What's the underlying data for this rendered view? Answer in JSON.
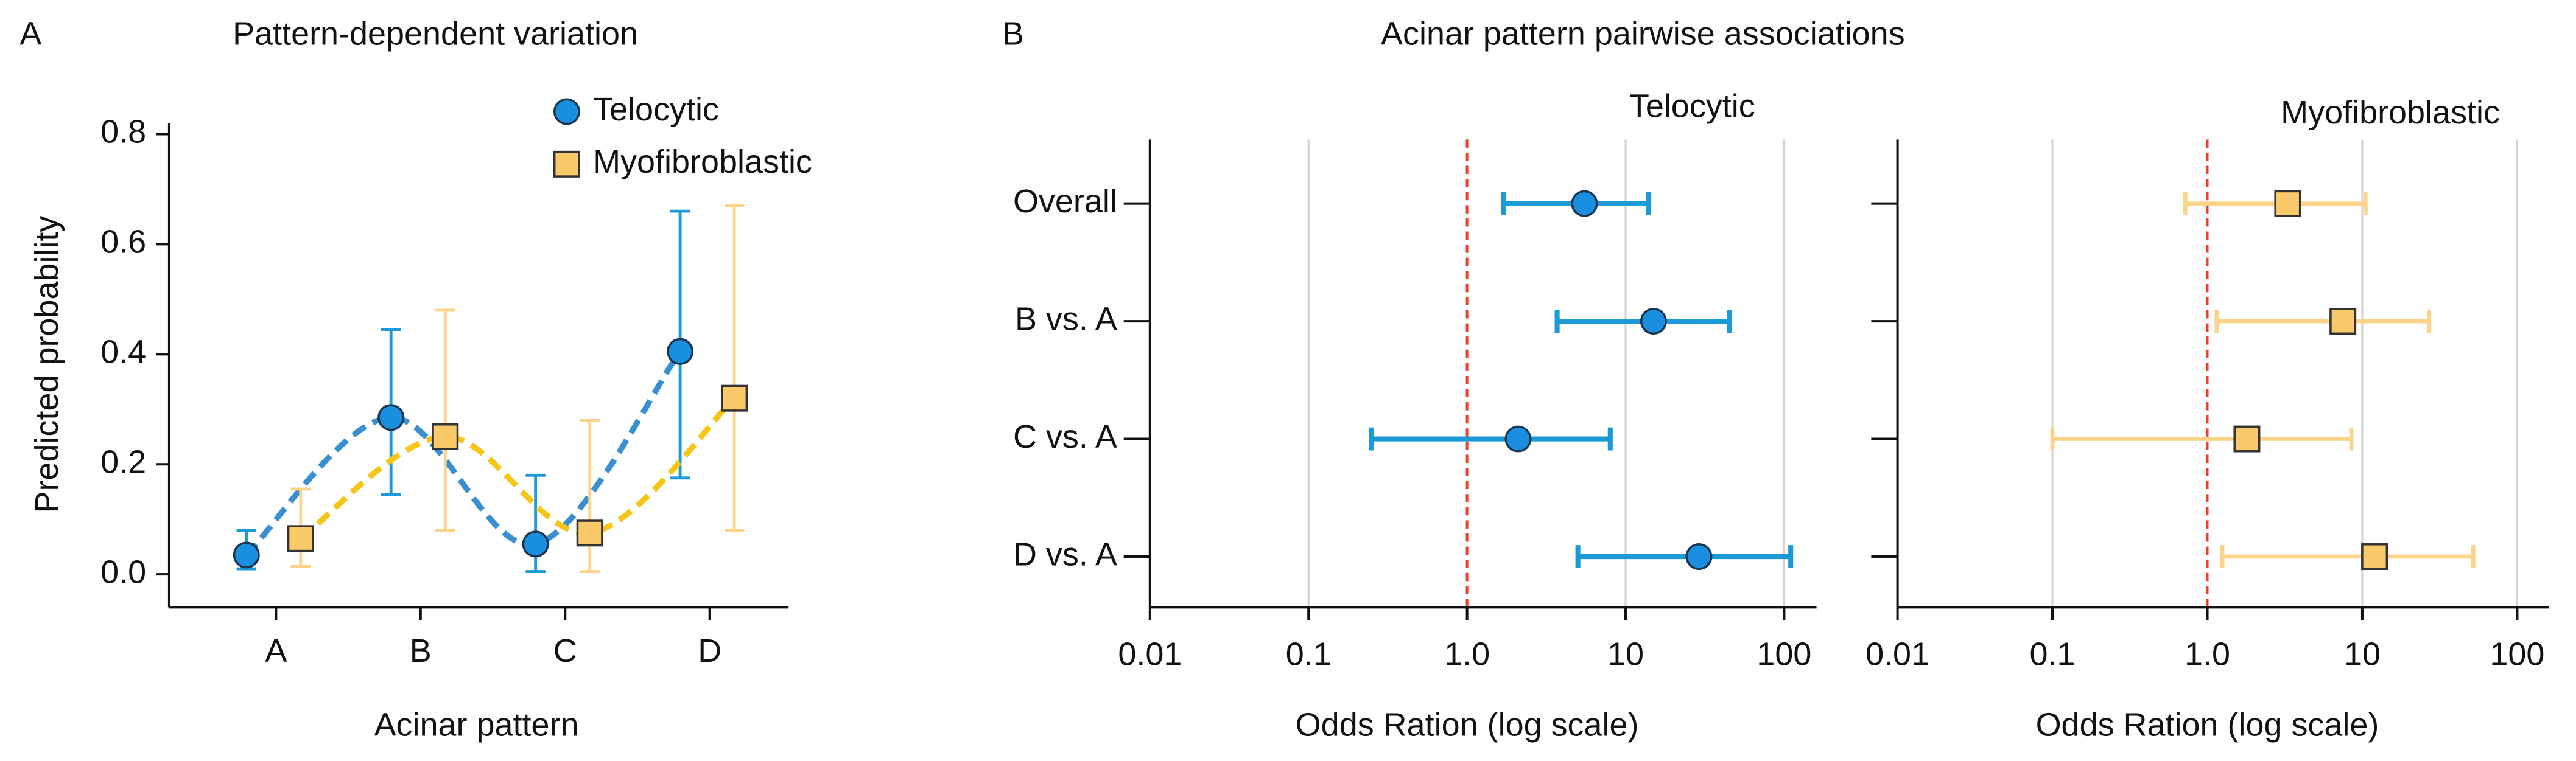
{
  "chart_data": [
    {
      "type": "line",
      "panel_label": "A",
      "title": "Pattern-dependent variation",
      "x_label": "Acinar pattern",
      "y_label": "Predicted probability",
      "categories": [
        "A",
        "B",
        "C",
        "D"
      ],
      "series": [
        {
          "name": "Telocytic",
          "color": "#1a8fe0",
          "error_color": "#1a9ad6",
          "curve_color": "#3a8fd0",
          "marker": "circle",
          "values": [
            0.035,
            0.285,
            0.055,
            0.405
          ],
          "lower": [
            0.01,
            0.145,
            0.005,
            0.175
          ],
          "upper": [
            0.08,
            0.445,
            0.18,
            0.66
          ]
        },
        {
          "name": "Myofibroblastic",
          "color": "#f9c96a",
          "error_color": "#fbd48a",
          "curve_color": "#f5c518",
          "marker": "square",
          "values": [
            0.065,
            0.25,
            0.075,
            0.32
          ],
          "lower": [
            0.015,
            0.08,
            0.005,
            0.08
          ],
          "upper": [
            0.155,
            0.48,
            0.28,
            0.67
          ]
        }
      ],
      "ylim": [
        -0.06,
        0.82
      ],
      "yticks": [
        {
          "value": 0,
          "label": "0.0"
        },
        0.2,
        0.4,
        0.6,
        0.8
      ],
      "legend": "upper right"
    },
    {
      "type": "forest",
      "panel_label": "B",
      "title": "Acinar pattern pairwise associations",
      "subtitle": "Telocytic",
      "x_label": "Odds Ration (log scale)",
      "log_scale": true,
      "grid": true,
      "categories": [
        "Overall",
        "B vs. A",
        "C vs. A",
        "D vs. A"
      ],
      "values": [
        5.5,
        15,
        2.1,
        29
      ],
      "lower": [
        1.7,
        3.7,
        0.25,
        5
      ],
      "upper": [
        14,
        45,
        8,
        110
      ],
      "color": "#1a8fe0",
      "error_color": "#1a9ad6",
      "marker": "circle",
      "refline": 1,
      "refline_color": "#e8412c",
      "xlim": [
        0.01,
        160
      ],
      "xticks": [
        0.01,
        0.1,
        {
          "value": 1,
          "label": "1.0"
        },
        10,
        100
      ]
    },
    {
      "type": "forest",
      "subtitle": "Myofibroblastic",
      "x_label": "Odds Ration (log scale)",
      "log_scale": true,
      "grid": true,
      "categories": [
        null,
        null,
        null,
        null
      ],
      "values": [
        3.3,
        7.5,
        1.8,
        12
      ],
      "lower": [
        0.72,
        1.15,
        0.1,
        1.25
      ],
      "upper": [
        10.5,
        27,
        8.5,
        52
      ],
      "color": "#f9c96a",
      "error_color": "#fbd48a",
      "marker": "square",
      "refline": 1,
      "refline_color": "#e8412c",
      "xlim": [
        0.01,
        160
      ],
      "xticks": [
        0.01,
        0.1,
        {
          "value": 1,
          "label": "1.0"
        },
        10,
        100
      ]
    }
  ]
}
